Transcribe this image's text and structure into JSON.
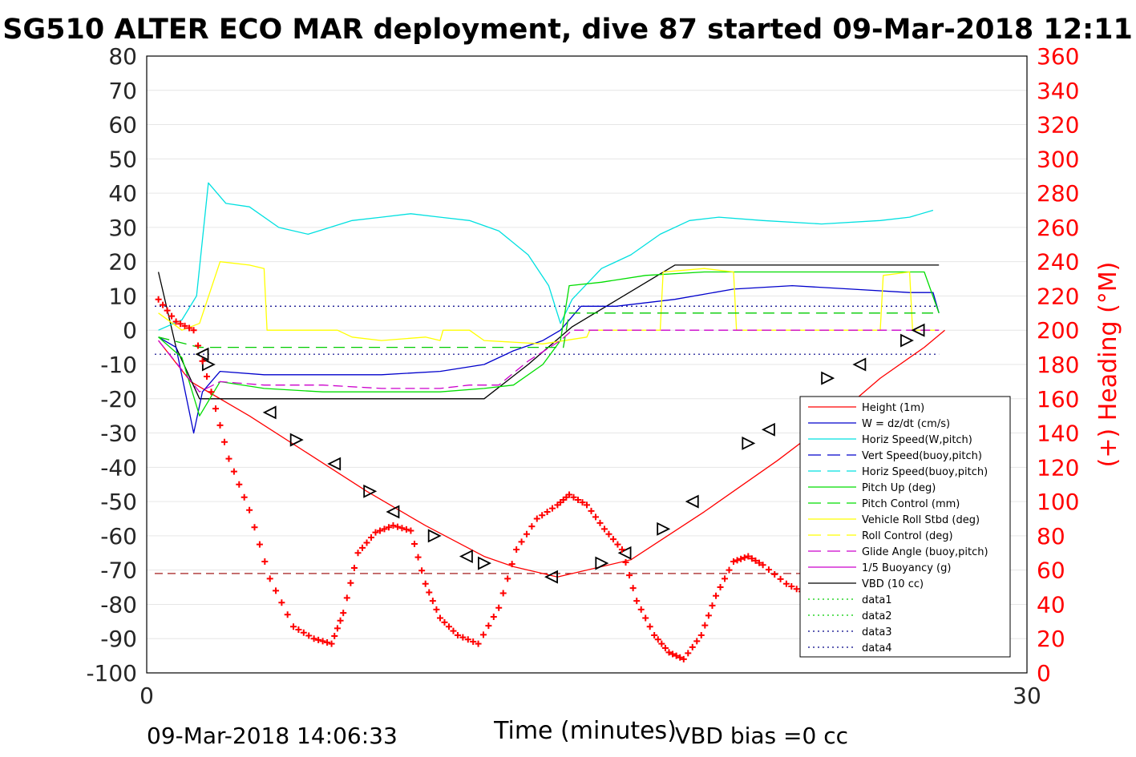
{
  "chart_data": {
    "type": "line",
    "title": "SG510 ALTER ECO MAR deployment, dive 87 started 09-Mar-2018 12:11",
    "xlabel": "Time (minutes)",
    "ylabel_right": "(+) Heading (°M)",
    "xlim": [
      0,
      30
    ],
    "ylim_left": [
      -100,
      80
    ],
    "ylim_right": [
      0,
      360
    ],
    "x_ticks": [
      "0",
      "30"
    ],
    "y_ticks_left": [
      "80",
      "70",
      "60",
      "50",
      "40",
      "30",
      "20",
      "10",
      "0",
      "-10",
      "-20",
      "-30",
      "-40",
      "-50",
      "-60",
      "-70",
      "-80",
      "-90",
      "-100"
    ],
    "y_ticks_right": [
      "360",
      "340",
      "320",
      "300",
      "280",
      "260",
      "240",
      "220",
      "200",
      "180",
      "160",
      "140",
      "120",
      "100",
      "80",
      "60",
      "40",
      "20",
      "0"
    ],
    "grid": true,
    "legend_position": "lower-right",
    "footer_left": "09-Mar-2018 14:06:33",
    "footer_right": "VBD bias =0 cc",
    "colors": {
      "height": "#ff0000",
      "w": "#0000cc",
      "horiz": "#00e0e0",
      "pitch": "#00dd00",
      "roll": "#ffff00",
      "glide": "#cc00cc",
      "vbd": "#000000",
      "data1": "#00cc00",
      "data3": "#000088",
      "heading": "#ff0000"
    },
    "legend": [
      {
        "label": "Height (1m)",
        "color": "#ff0000",
        "dash": "solid"
      },
      {
        "label": "W = dz/dt (cm/s)",
        "color": "#0000cc",
        "dash": "solid"
      },
      {
        "label": "Horiz Speed(W,pitch)",
        "color": "#00e0e0",
        "dash": "solid"
      },
      {
        "label": "Vert Speed(buoy,pitch)",
        "color": "#0000cc",
        "dash": "dashed"
      },
      {
        "label": "Horiz Speed(buoy,pitch)",
        "color": "#00e0e0",
        "dash": "dashed"
      },
      {
        "label": "Pitch Up (deg)",
        "color": "#00dd00",
        "dash": "solid"
      },
      {
        "label": "Pitch Control (mm)",
        "color": "#00dd00",
        "dash": "dashed"
      },
      {
        "label": "Vehicle Roll Stbd (deg)",
        "color": "#ffff00",
        "dash": "solid"
      },
      {
        "label": "Roll Control (deg)",
        "color": "#ffff00",
        "dash": "dashed"
      },
      {
        "label": "Glide Angle (buoy,pitch)",
        "color": "#cc00cc",
        "dash": "dashed"
      },
      {
        "label": "1/5 Buoyancy (g)",
        "color": "#cc00cc",
        "dash": "solid"
      },
      {
        "label": "VBD (10 cc)",
        "color": "#000000",
        "dash": "solid"
      },
      {
        "label": "data1",
        "color": "#00cc00",
        "dash": "dotted"
      },
      {
        "label": "data2",
        "color": "#00cc00",
        "dash": "dotted"
      },
      {
        "label": "data3",
        "color": "#000088",
        "dash": "dotted"
      },
      {
        "label": "data4",
        "color": "#000088",
        "dash": "dotted"
      }
    ],
    "series": [
      {
        "key": "height",
        "x": [
          0.4,
          1.5,
          3.5,
          5.5,
          7.5,
          9.5,
          11.5,
          12.5,
          14.0,
          16.5,
          19.0,
          21.5,
          23.5,
          25.0,
          26.5,
          27.2
        ],
        "y": [
          -3,
          -15,
          -25,
          -36,
          -47,
          -57,
          -66,
          -69,
          -72,
          -67,
          -53,
          -38,
          -25,
          -14,
          -5,
          0
        ]
      },
      {
        "key": "vbd",
        "x": [
          0.4,
          1.0,
          1.8,
          6.0,
          10.5,
          11.5,
          13.0,
          14.5,
          18.0,
          22.0,
          26.0,
          27.0
        ],
        "y": [
          17,
          -5,
          -20,
          -20,
          -20,
          -20,
          -10,
          1,
          19,
          19,
          19,
          19
        ]
      },
      {
        "key": "w",
        "x": [
          0.4,
          1.0,
          1.6,
          1.9,
          2.5,
          4.0,
          6.0,
          8.0,
          10.0,
          11.5,
          12.5,
          13.5,
          14.1,
          14.8,
          16.0,
          18.0,
          20.0,
          22.0,
          24.0,
          26.0,
          26.8,
          27.0
        ],
        "y": [
          -2,
          -5,
          -30,
          -18,
          -12,
          -13,
          -13,
          -13,
          -12,
          -10,
          -6,
          -3,
          0,
          7,
          7,
          9,
          12,
          13,
          12,
          11,
          11,
          5
        ]
      },
      {
        "key": "horiz",
        "x": [
          0.4,
          1.2,
          1.7,
          2.1,
          2.7,
          3.5,
          4.5,
          5.5,
          7.0,
          8.0,
          9.0,
          10.0,
          11.0,
          12.0,
          13.0,
          13.7,
          14.1,
          14.5,
          15.5,
          16.5,
          17.5,
          18.5,
          19.5,
          21.0,
          23.0,
          25.0,
          26.0,
          26.8
        ],
        "y": [
          0,
          3,
          10,
          43,
          37,
          36,
          30,
          28,
          32,
          33,
          34,
          33,
          32,
          29,
          22,
          13,
          2,
          9,
          18,
          22,
          28,
          32,
          33,
          32,
          31,
          32,
          33,
          35
        ]
      },
      {
        "key": "pitch",
        "x": [
          0.4,
          1.2,
          1.8,
          2.5,
          4.0,
          6.0,
          8.0,
          10.0,
          11.5,
          12.5,
          13.5,
          14.1,
          14.4,
          15.5,
          17.0,
          19.0,
          21.0,
          23.0,
          25.0,
          26.5,
          27.0
        ],
        "y": [
          -2,
          -8,
          -25,
          -15,
          -17,
          -18,
          -18,
          -18,
          -17,
          -16,
          -10,
          -3,
          13,
          14,
          16,
          17,
          17,
          17,
          17,
          17,
          5
        ]
      },
      {
        "key": "roll",
        "x": [
          0.4,
          1.2,
          1.8,
          2.5,
          3.5,
          4.0,
          4.1,
          6.5,
          7.0,
          8.0,
          9.5,
          10.0,
          10.1,
          11.0,
          11.5,
          13.5,
          15.0,
          15.1,
          17.5,
          17.6,
          19.0,
          20.0,
          20.1,
          22.0,
          25.0,
          25.1,
          26.0,
          26.1,
          27.0
        ],
        "y": [
          5,
          0,
          2,
          20,
          19,
          18,
          0,
          0,
          -2,
          -3,
          -2,
          -3,
          0,
          0,
          -3,
          -4,
          -2,
          0,
          0,
          17,
          18,
          17,
          0,
          0,
          0,
          16,
          17,
          0,
          0
        ]
      },
      {
        "key": "glide",
        "x": [
          0.4,
          1.8,
          2.5,
          4.0,
          6.0,
          8.0,
          10.0,
          11.0,
          12.0,
          13.0,
          14.1,
          14.5,
          18.0,
          22.0,
          26.0,
          27.0
        ],
        "y": [
          -3,
          -18,
          -15,
          -16,
          -16,
          -17,
          -17,
          -16,
          -16,
          -9,
          -3,
          0,
          0,
          0,
          0,
          0
        ]
      },
      {
        "key": "data1",
        "x": [
          0.4,
          1.8,
          14.2,
          14.4,
          27.0
        ],
        "y": [
          -2,
          -5,
          -5,
          5,
          5
        ]
      }
    ],
    "reference_lines": [
      {
        "key": "data3",
        "y": 7
      },
      {
        "key": "data3",
        "y": -7
      },
      {
        "key": "vbd_ref",
        "y": -71
      }
    ],
    "heading": {
      "x": [
        0.4,
        1.0,
        1.6,
        2.2,
        2.8,
        3.5,
        4.2,
        5.0,
        5.7,
        6.3,
        6.7,
        7.2,
        7.8,
        8.4,
        9.0,
        9.5,
        10.0,
        10.6,
        11.3,
        12.0,
        12.6,
        13.3,
        14.0,
        14.4,
        15.0,
        15.6,
        16.2,
        16.7,
        17.3,
        17.8,
        18.3,
        18.9,
        19.4,
        20.0,
        20.5,
        21.0,
        21.8,
        22.5,
        23.2,
        23.8,
        24.3,
        25.0,
        25.5,
        26.0,
        26.5,
        26.8,
        27.0
      ],
      "y": [
        218,
        205,
        200,
        164,
        125,
        95,
        55,
        27,
        20,
        17,
        35,
        70,
        82,
        86,
        83,
        52,
        32,
        22,
        17,
        38,
        72,
        90,
        98,
        104,
        98,
        84,
        72,
        42,
        22,
        12,
        8,
        22,
        45,
        65,
        68,
        63,
        52,
        46,
        48,
        56,
        60,
        58,
        56,
        48,
        44,
        62,
        53
      ]
    },
    "triangle_markers": [
      {
        "x": 1.9,
        "y": -7
      },
      {
        "x": 2.1,
        "y": -10
      },
      {
        "x": 4.2,
        "y": -24
      },
      {
        "x": 5.1,
        "y": -32
      },
      {
        "x": 6.4,
        "y": -39
      },
      {
        "x": 7.6,
        "y": -47
      },
      {
        "x": 8.4,
        "y": -53
      },
      {
        "x": 9.8,
        "y": -60
      },
      {
        "x": 10.9,
        "y": -66
      },
      {
        "x": 11.5,
        "y": -68
      },
      {
        "x": 13.8,
        "y": -72
      },
      {
        "x": 15.5,
        "y": -68
      },
      {
        "x": 16.3,
        "y": -65
      },
      {
        "x": 17.6,
        "y": -58
      },
      {
        "x": 18.6,
        "y": -50
      },
      {
        "x": 20.5,
        "y": -33
      },
      {
        "x": 21.2,
        "y": -29
      },
      {
        "x": 23.2,
        "y": -14
      },
      {
        "x": 24.3,
        "y": -10
      },
      {
        "x": 25.9,
        "y": -3
      },
      {
        "x": 26.3,
        "y": 0
      }
    ]
  }
}
